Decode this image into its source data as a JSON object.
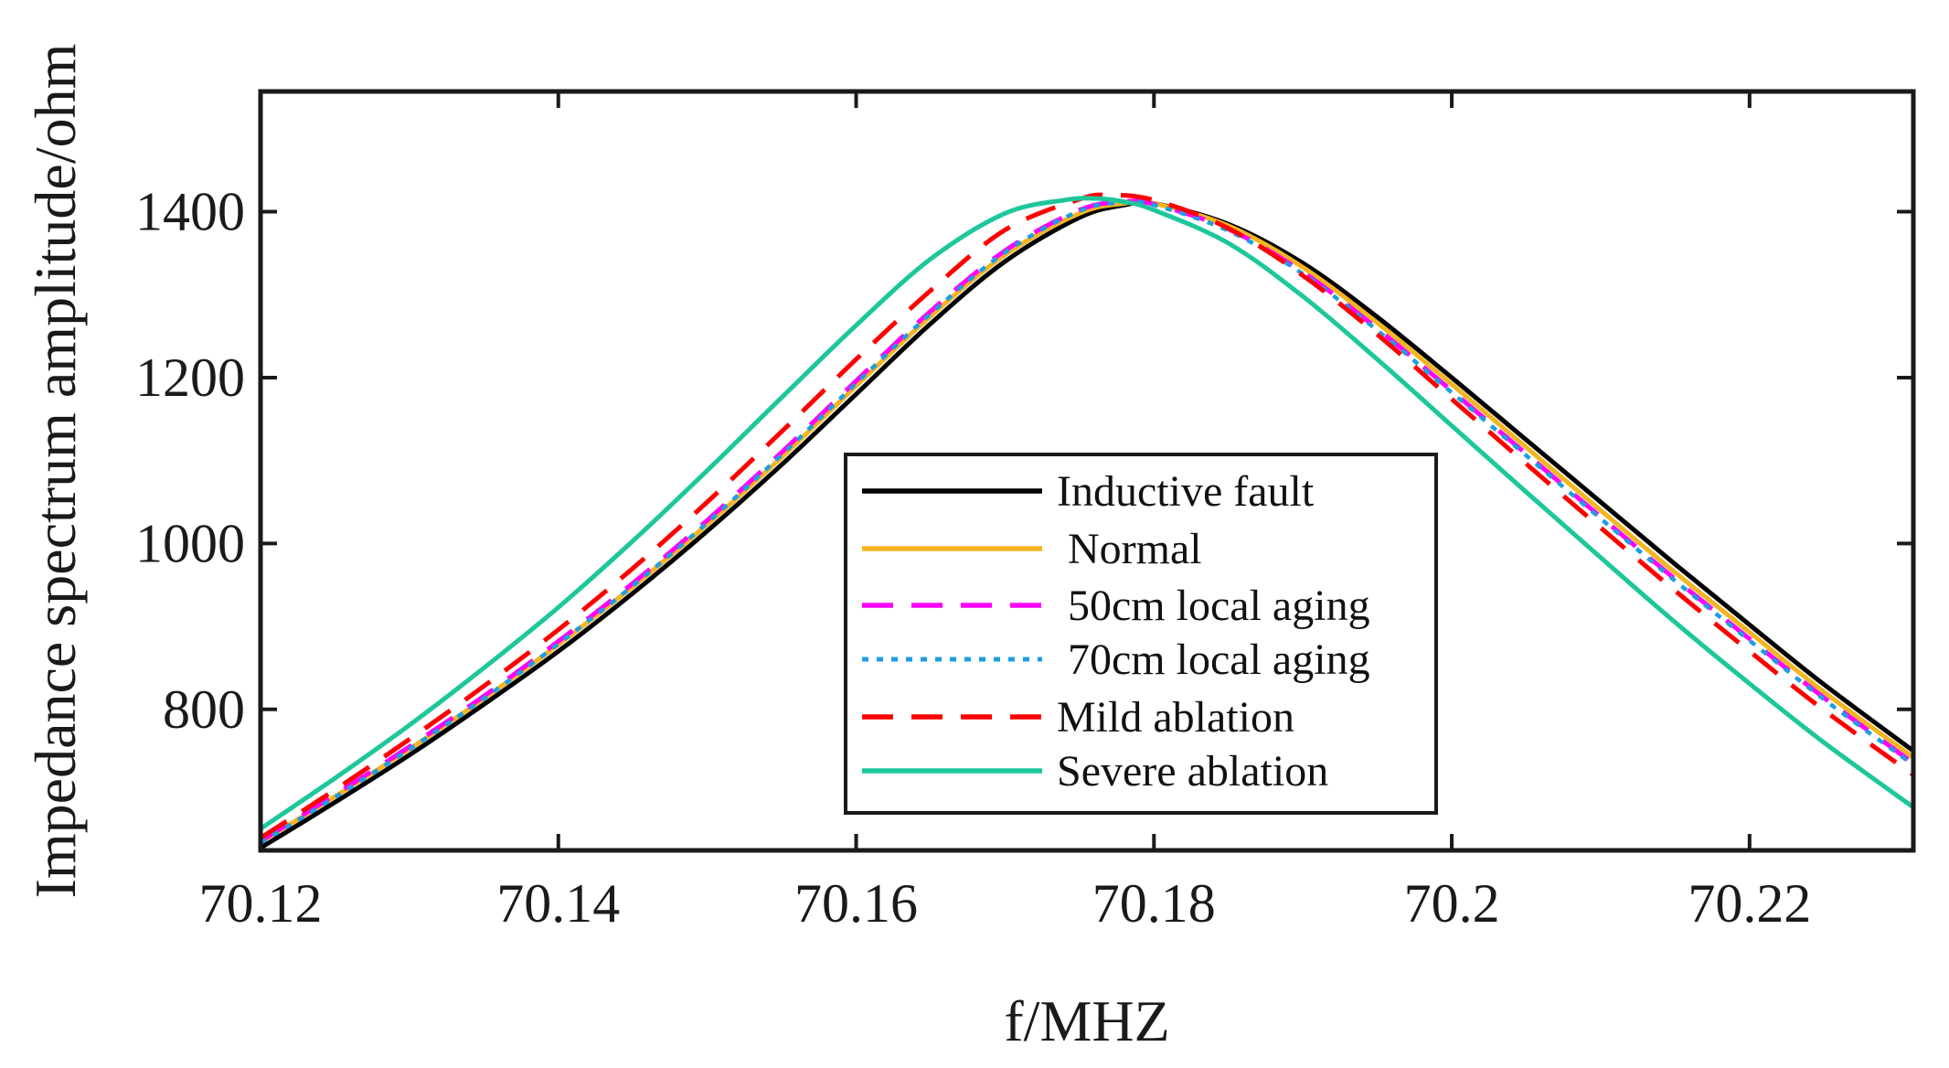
{
  "chart_data": {
    "type": "line",
    "title": "",
    "xlabel": "f/MHZ",
    "ylabel": "Impedance  spectrum amplitude/ohm",
    "xlim": [
      70.12,
      70.231
    ],
    "ylim": [
      630,
      1545
    ],
    "xticks": [
      70.12,
      70.14,
      70.16,
      70.18,
      70.2,
      70.22
    ],
    "xtick_labels": [
      "70.12",
      "70.14",
      "70.16",
      "70.18",
      "70.2",
      "70.22"
    ],
    "yticks": [
      800,
      1000,
      1200,
      1400
    ],
    "ytick_labels": [
      "800",
      "1000",
      "1200",
      "1400"
    ],
    "grid": false,
    "legend_position": "bottom-center",
    "series": [
      {
        "name": "Inductive fault",
        "label": "Inductive fault",
        "color": "#000000",
        "style": "solid",
        "x": [
          70.12,
          70.125,
          70.13,
          70.135,
          70.14,
          70.145,
          70.15,
          70.155,
          70.16,
          70.165,
          70.17,
          70.175,
          70.178,
          70.18,
          70.185,
          70.19,
          70.195,
          70.2,
          70.205,
          70.21,
          70.215,
          70.22,
          70.225,
          70.231
        ],
        "y": [
          633,
          688,
          745,
          806,
          870,
          940,
          1015,
          1095,
          1180,
          1265,
          1340,
          1393,
          1408,
          1410,
          1385,
          1338,
          1273,
          1200,
          1125,
          1050,
          975,
          902,
          830,
          750
        ]
      },
      {
        "name": "Normal",
        "label": " Normal",
        "color": "#f5b520",
        "style": "solid",
        "x": [
          70.12,
          70.125,
          70.13,
          70.135,
          70.14,
          70.145,
          70.15,
          70.155,
          70.16,
          70.165,
          70.17,
          70.175,
          70.178,
          70.18,
          70.185,
          70.19,
          70.195,
          70.2,
          70.205,
          70.21,
          70.215,
          70.22,
          70.225,
          70.231
        ],
        "y": [
          640,
          695,
          752,
          813,
          878,
          948,
          1023,
          1104,
          1190,
          1274,
          1348,
          1398,
          1410,
          1410,
          1383,
          1333,
          1266,
          1192,
          1116,
          1040,
          965,
          893,
          821,
          742
        ]
      },
      {
        "name": "50cm local aging",
        "label": " 50cm local aging",
        "color": "#ff00ff",
        "style": "dashed",
        "x": [
          70.12,
          70.125,
          70.13,
          70.135,
          70.14,
          70.145,
          70.15,
          70.155,
          70.16,
          70.165,
          70.17,
          70.175,
          70.178,
          70.18,
          70.185,
          70.19,
          70.195,
          70.2,
          70.205,
          70.21,
          70.215,
          70.22,
          70.225,
          70.231
        ],
        "y": [
          641,
          697,
          755,
          816,
          882,
          952,
          1028,
          1110,
          1196,
          1280,
          1353,
          1402,
          1412,
          1409,
          1379,
          1327,
          1259,
          1184,
          1108,
          1032,
          957,
          885,
          814,
          735
        ]
      },
      {
        "name": "70cm local aging",
        "label": " 70cm local aging",
        "color": "#1e9ee0",
        "style": "dotted",
        "x": [
          70.12,
          70.125,
          70.13,
          70.135,
          70.14,
          70.145,
          70.15,
          70.155,
          70.16,
          70.165,
          70.17,
          70.175,
          70.178,
          70.18,
          70.185,
          70.19,
          70.195,
          70.2,
          70.205,
          70.21,
          70.215,
          70.22,
          70.225,
          70.231
        ],
        "y": [
          639,
          694,
          752,
          813,
          879,
          949,
          1025,
          1107,
          1193,
          1277,
          1351,
          1401,
          1411,
          1408,
          1377,
          1325,
          1257,
          1182,
          1106,
          1030,
          955,
          883,
          812,
          733
        ]
      },
      {
        "name": "Mild ablation",
        "label": "Mild ablation",
        "color": "#ff0000",
        "style": "dashed",
        "x": [
          70.12,
          70.125,
          70.13,
          70.135,
          70.14,
          70.145,
          70.15,
          70.155,
          70.16,
          70.165,
          70.17,
          70.175,
          70.177,
          70.18,
          70.185,
          70.19,
          70.195,
          70.2,
          70.205,
          70.21,
          70.215,
          70.22,
          70.225,
          70.231
        ],
        "y": [
          645,
          703,
          764,
          828,
          896,
          970,
          1050,
          1135,
          1222,
          1305,
          1378,
          1415,
          1420,
          1414,
          1380,
          1323,
          1252,
          1174,
          1096,
          1019,
          943,
          870,
          799,
          721
        ]
      },
      {
        "name": "Severe ablation",
        "label": "Severe ablation",
        "color": "#1dc79b",
        "style": "solid",
        "x": [
          70.12,
          70.125,
          70.13,
          70.135,
          70.14,
          70.145,
          70.15,
          70.155,
          70.16,
          70.165,
          70.17,
          70.174,
          70.176,
          70.178,
          70.18,
          70.185,
          70.19,
          70.195,
          70.2,
          70.205,
          70.21,
          70.215,
          70.22,
          70.225,
          70.231
        ],
        "y": [
          656,
          717,
          781,
          850,
          923,
          1003,
          1088,
          1176,
          1263,
          1343,
          1398,
          1414,
          1416,
          1412,
          1402,
          1362,
          1298,
          1222,
          1142,
          1062,
          983,
          905,
          831,
          760,
          682
        ]
      }
    ]
  }
}
